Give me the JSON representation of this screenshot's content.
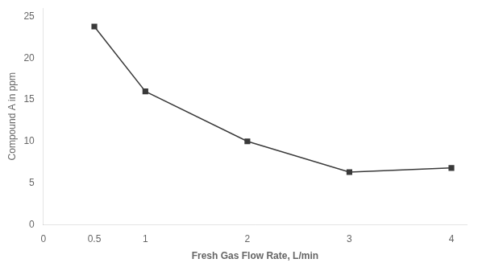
{
  "chart_data": {
    "type": "line",
    "x": [
      0.5,
      1.0,
      2.0,
      3.0,
      4.0
    ],
    "values": [
      23.8,
      16.0,
      10.0,
      6.3,
      6.8
    ],
    "xlabel": "Fresh Gas Flow Rate, L/min",
    "ylabel": "Compound A in ppm",
    "xlim": [
      0,
      4.15
    ],
    "ylim": [
      0,
      26
    ],
    "xticks": [
      0,
      0.5,
      1,
      {
        "value": 1.5,
        "label": null
      },
      2,
      {
        "value": 2.5,
        "label": null
      },
      3,
      {
        "value": 3.5,
        "label": null
      },
      4
    ],
    "yticks": [
      0,
      5,
      10,
      15,
      20,
      25
    ],
    "color": "#3a3a3a",
    "marker": "square",
    "grid": false
  }
}
